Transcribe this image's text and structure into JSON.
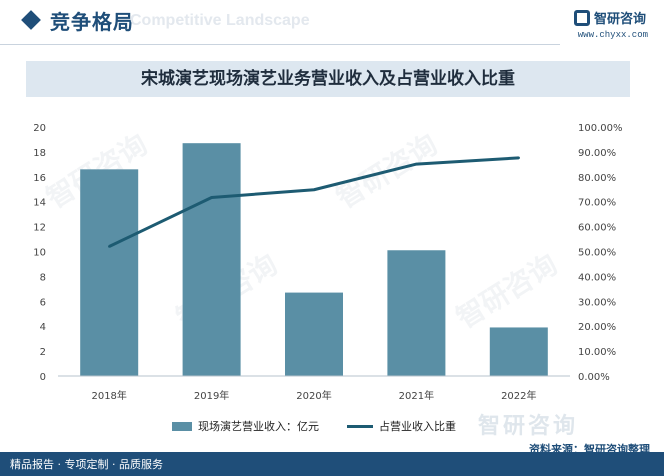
{
  "header": {
    "section_title": "竞争格局",
    "section_bg_text": "Competitive Landscape",
    "brand_name": "智研咨询",
    "brand_url": "www.chyxx.com"
  },
  "chart_data": {
    "type": "bar+line",
    "title": "宋城演艺现场演艺业务营业收入及占营业收入比重",
    "categories": [
      "2018年",
      "2019年",
      "2020年",
      "2021年",
      "2022年"
    ],
    "series": [
      {
        "name": "现场演艺营业收入：亿元",
        "type": "bar",
        "axis": "left",
        "values": [
          16.6,
          18.7,
          6.7,
          10.1,
          3.9
        ]
      },
      {
        "name": "占营业收入比重",
        "type": "line",
        "axis": "right",
        "values": [
          52.0,
          71.7,
          74.8,
          85.1,
          87.6
        ]
      }
    ],
    "ylim_left": [
      0,
      20
    ],
    "left_ticks": [
      "0",
      "2",
      "4",
      "6",
      "8",
      "10",
      "12",
      "14",
      "16",
      "18",
      "20"
    ],
    "ylim_right": [
      0,
      100
    ],
    "right_ticks": [
      "0.00%",
      "10.00%",
      "20.00%",
      "30.00%",
      "40.00%",
      "50.00%",
      "60.00%",
      "70.00%",
      "80.00%",
      "90.00%",
      "100.00%"
    ],
    "legend_position": "bottom-center",
    "colors": {
      "bar": "#5a8fa5",
      "line": "#1d5b72"
    }
  },
  "footer": {
    "source": "资料来源：智研咨询整理",
    "tagline": "精品报告 · 专项定制 · 品质服务",
    "watermark": "智研咨询"
  }
}
